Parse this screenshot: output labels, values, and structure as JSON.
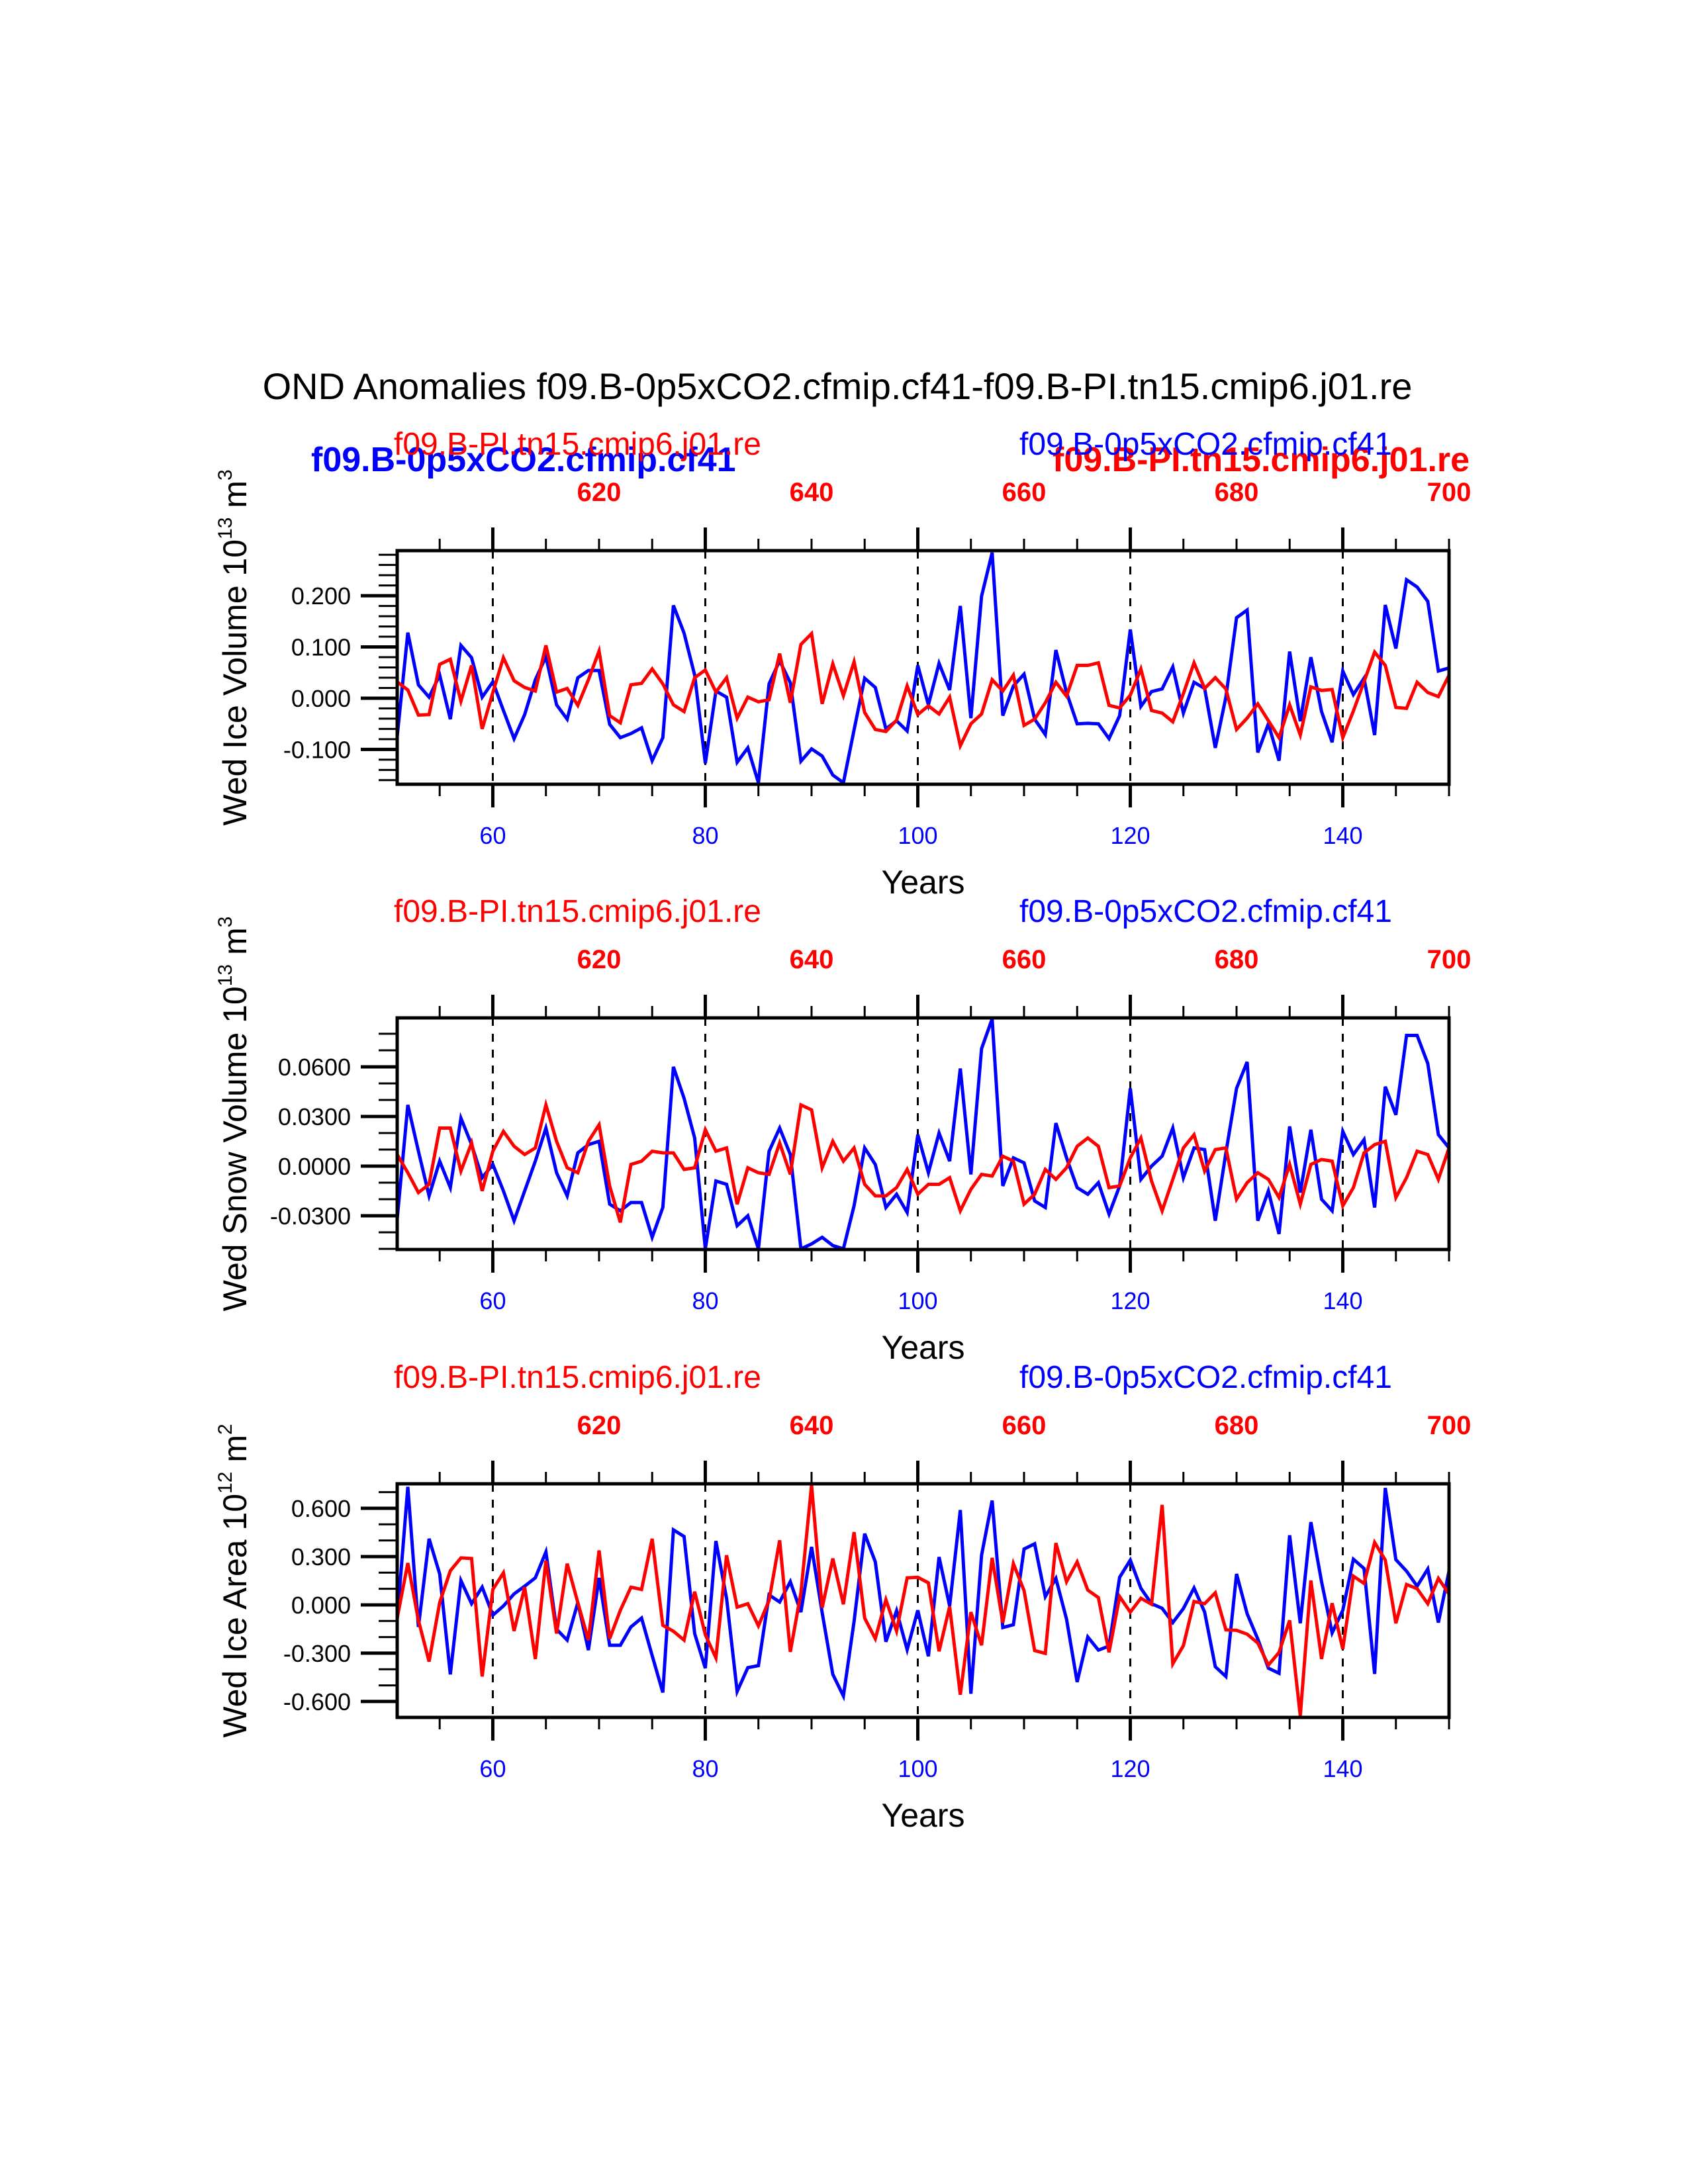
{
  "figure": {
    "title": "OND Anomalies f09.B-0p5xCO2.cfmip.cf41-f09.B-PI.tn15.cmip6.j01.re",
    "colors": {
      "exp": "#0000ff",
      "ctrl": "#ff0000",
      "axis": "#000000"
    },
    "overlay_labels": {
      "exp_bold": "f09.B-0p5xCO2.cfmip.cf41",
      "ctrl_bold": "f09.B-PI.tn15.cmip6.j01.re"
    }
  },
  "chart_data": [
    {
      "type": "line",
      "ylabel_main": "Wed Ice Volume 10",
      "ylabel_exp": "13",
      "ylabel_unit": " m",
      "ylabel_unit_exp": "3",
      "xlabel": "Years",
      "top_left_label": "f09.B-PI.tn15.cmip6.j01.re",
      "top_right_label": "f09.B-0p5xCO2.cfmip.cf41",
      "xlim": [
        51,
        150
      ],
      "ylim": [
        -0.168,
        0.288
      ],
      "x_ticks_bottom": [
        60,
        80,
        100,
        120,
        140
      ],
      "x_ticks_top": [
        620,
        640,
        660,
        680,
        700
      ],
      "top_axis_offset": 550,
      "y_ticks": [
        0.2,
        0.1,
        0.0,
        -0.1
      ],
      "y_tick_labels": [
        "0.200",
        "0.100",
        "0.000",
        "-0.100"
      ],
      "y_minor_step": 0.02,
      "vlines": [
        60,
        80,
        100,
        120,
        140
      ],
      "grid": false,
      "x_start": 51,
      "series": [
        {
          "name": "f09.B-0p5xCO2.cfmip.cf41",
          "color": "#0000ff",
          "values": [
            -0.075,
            0.128,
            0.026,
            0.002,
            0.045,
            -0.041,
            0.103,
            0.079,
            0.002,
            0.032,
            -0.024,
            -0.079,
            -0.032,
            0.036,
            0.081,
            -0.013,
            -0.041,
            0.04,
            0.054,
            0.054,
            -0.051,
            -0.077,
            -0.069,
            -0.058,
            -0.122,
            -0.077,
            0.181,
            0.127,
            0.045,
            -0.127,
            0.014,
            0.002,
            -0.125,
            -0.097,
            -0.165,
            0.028,
            0.073,
            0.03,
            -0.123,
            -0.099,
            -0.113,
            -0.15,
            -0.165,
            -0.062,
            0.039,
            0.021,
            -0.06,
            -0.044,
            -0.064,
            0.064,
            -0.013,
            0.068,
            0.016,
            0.18,
            -0.039,
            0.199,
            0.284,
            -0.034,
            0.024,
            0.047,
            -0.041,
            -0.071,
            0.094,
            0.011,
            -0.05,
            -0.049,
            -0.05,
            -0.079,
            -0.034,
            0.134,
            -0.016,
            0.013,
            0.018,
            0.061,
            -0.029,
            0.031,
            0.019,
            -0.097,
            0.002,
            0.157,
            0.172,
            -0.106,
            -0.05,
            -0.122,
            0.091,
            -0.045,
            0.08,
            -0.026,
            -0.086,
            0.053,
            0.007,
            0.039,
            -0.072,
            0.182,
            0.097,
            0.231,
            0.217,
            0.189,
            0.053,
            0.059
          ]
        },
        {
          "name": "f09.B-PI.tn15.cmip6.j01.re",
          "color": "#ff0000",
          "values": [
            0.032,
            0.016,
            -0.033,
            -0.032,
            0.066,
            0.076,
            -0.006,
            0.064,
            -0.06,
            0.011,
            0.079,
            0.034,
            0.021,
            0.014,
            0.103,
            0.012,
            0.019,
            -0.014,
            0.036,
            0.092,
            -0.034,
            -0.048,
            0.026,
            0.029,
            0.057,
            0.028,
            -0.013,
            -0.026,
            0.04,
            0.055,
            0.012,
            0.04,
            -0.039,
            0.002,
            -0.007,
            -0.003,
            0.087,
            -0.009,
            0.105,
            0.126,
            -0.011,
            0.067,
            0.005,
            0.071,
            -0.028,
            -0.061,
            -0.065,
            -0.043,
            0.024,
            -0.032,
            -0.015,
            -0.031,
            0.002,
            -0.093,
            -0.05,
            -0.031,
            0.036,
            0.014,
            0.045,
            -0.053,
            -0.041,
            -0.009,
            0.031,
            0.004,
            0.064,
            0.064,
            0.069,
            -0.014,
            -0.019,
            0.006,
            0.057,
            -0.024,
            -0.029,
            -0.046,
            0.009,
            0.069,
            0.019,
            0.04,
            0.018,
            -0.061,
            -0.039,
            -0.011,
            -0.044,
            -0.077,
            -0.013,
            -0.072,
            0.022,
            0.015,
            0.017,
            -0.077,
            -0.025,
            0.032,
            0.09,
            0.064,
            -0.018,
            -0.02,
            0.031,
            0.011,
            0.003,
            0.045
          ]
        }
      ]
    },
    {
      "type": "line",
      "ylabel_main": "Wed Snow Volume 10",
      "ylabel_exp": "13",
      "ylabel_unit": " m",
      "ylabel_unit_exp": "3",
      "xlabel": "Years",
      "top_left_label": "f09.B-PI.tn15.cmip6.j01.re",
      "top_right_label": "f09.B-0p5xCO2.cfmip.cf41",
      "xlim": [
        51,
        150
      ],
      "ylim": [
        -0.0504,
        0.0896
      ],
      "x_ticks_bottom": [
        60,
        80,
        100,
        120,
        140
      ],
      "x_ticks_top": [
        620,
        640,
        660,
        680,
        700
      ],
      "top_axis_offset": 550,
      "y_ticks": [
        0.06,
        0.03,
        0.0,
        -0.03
      ],
      "y_tick_labels": [
        "0.0600",
        "0.0300",
        "0.0000",
        "-0.0300"
      ],
      "y_minor_step": 0.01,
      "vlines": [
        60,
        80,
        100,
        120,
        140
      ],
      "grid": false,
      "x_start": 51,
      "series": [
        {
          "name": "f09.B-0p5xCO2.cfmip.cf41",
          "color": "#0000ff",
          "values": [
            -0.032,
            0.037,
            0.009,
            -0.018,
            0.003,
            -0.013,
            0.029,
            0.013,
            -0.007,
            0.001,
            -0.015,
            -0.033,
            -0.015,
            0.003,
            0.023,
            -0.004,
            -0.018,
            0.008,
            0.013,
            0.015,
            -0.023,
            -0.027,
            -0.022,
            -0.022,
            -0.043,
            -0.025,
            0.06,
            0.041,
            0.017,
            -0.05,
            -0.009,
            -0.011,
            -0.036,
            -0.03,
            -0.05,
            0.009,
            0.023,
            0.007,
            -0.05,
            -0.047,
            -0.043,
            -0.048,
            -0.05,
            -0.024,
            0.011,
            0.001,
            -0.025,
            -0.017,
            -0.028,
            0.019,
            -0.004,
            0.02,
            0.003,
            0.059,
            -0.005,
            0.071,
            0.089,
            -0.012,
            0.005,
            0.002,
            -0.021,
            -0.025,
            0.026,
            0.005,
            -0.013,
            -0.017,
            -0.01,
            -0.029,
            -0.012,
            0.047,
            -0.008,
            0.0,
            0.006,
            0.023,
            -0.007,
            0.011,
            0.01,
            -0.033,
            0.008,
            0.047,
            0.063,
            -0.033,
            -0.015,
            -0.041,
            0.024,
            -0.016,
            0.022,
            -0.02,
            -0.027,
            0.021,
            0.007,
            0.016,
            -0.025,
            0.048,
            0.031,
            0.079,
            0.079,
            0.062,
            0.019,
            0.011
          ]
        },
        {
          "name": "f09.B-PI.tn15.cmip6.j01.re",
          "color": "#ff0000",
          "values": [
            0.007,
            -0.004,
            -0.016,
            -0.011,
            0.023,
            0.023,
            -0.003,
            0.014,
            -0.015,
            0.009,
            0.021,
            0.012,
            0.007,
            0.011,
            0.037,
            0.015,
            -0.001,
            -0.004,
            0.015,
            0.025,
            -0.012,
            -0.034,
            0.001,
            0.003,
            0.009,
            0.008,
            0.008,
            -0.002,
            -0.001,
            0.022,
            0.009,
            0.011,
            -0.023,
            -0.001,
            -0.004,
            -0.005,
            0.014,
            -0.005,
            0.037,
            0.034,
            -0.001,
            0.015,
            0.003,
            0.011,
            -0.011,
            -0.018,
            -0.018,
            -0.013,
            -0.002,
            -0.017,
            -0.011,
            -0.011,
            -0.007,
            -0.027,
            -0.014,
            -0.005,
            -0.006,
            0.006,
            0.003,
            -0.023,
            -0.017,
            -0.002,
            -0.008,
            -0.001,
            0.012,
            0.017,
            0.012,
            -0.013,
            -0.012,
            0.005,
            0.017,
            -0.009,
            -0.027,
            -0.008,
            0.011,
            0.019,
            -0.003,
            0.01,
            0.011,
            -0.02,
            -0.01,
            -0.004,
            -0.008,
            -0.019,
            0.001,
            -0.023,
            0.001,
            0.004,
            0.003,
            -0.024,
            -0.013,
            0.008,
            0.013,
            0.015,
            -0.019,
            -0.007,
            0.009,
            0.007,
            -0.008,
            0.011
          ]
        }
      ]
    },
    {
      "type": "line",
      "ylabel_main": "Wed Ice Area 10",
      "ylabel_exp": "12",
      "ylabel_unit": " m",
      "ylabel_unit_exp": "2",
      "xlabel": "Years",
      "top_left_label": "f09.B-PI.tn15.cmip6.j01.re",
      "top_right_label": "f09.B-0p5xCO2.cfmip.cf41",
      "xlim": [
        51,
        150
      ],
      "ylim": [
        -0.699,
        0.752
      ],
      "x_ticks_bottom": [
        60,
        80,
        100,
        120,
        140
      ],
      "x_ticks_top": [
        620,
        640,
        660,
        680,
        700
      ],
      "top_axis_offset": 550,
      "y_ticks": [
        0.6,
        0.3,
        0.0,
        -0.3,
        -0.6
      ],
      "y_tick_labels": [
        "0.600",
        "0.300",
        "0.000",
        "-0.300",
        "-0.600"
      ],
      "y_minor_step": 0.1,
      "vlines": [
        60,
        80,
        100,
        120,
        140
      ],
      "grid": false,
      "x_start": 51,
      "series": [
        {
          "name": "f09.B-0p5xCO2.cfmip.cf41",
          "color": "#0000ff",
          "values": [
            -0.089,
            0.733,
            -0.137,
            0.411,
            0.192,
            -0.432,
            0.151,
            0.007,
            0.11,
            -0.064,
            -0.007,
            0.068,
            0.116,
            0.168,
            0.329,
            -0.151,
            -0.219,
            0.014,
            -0.281,
            0.168,
            -0.251,
            -0.251,
            -0.137,
            -0.082,
            -0.315,
            -0.544,
            0.466,
            0.425,
            -0.178,
            -0.393,
            0.397,
            0.041,
            -0.538,
            -0.39,
            -0.377,
            0.062,
            0.018,
            0.144,
            -0.045,
            0.36,
            -0.048,
            -0.432,
            -0.566,
            -0.103,
            0.442,
            0.267,
            -0.229,
            -0.037,
            -0.278,
            -0.034,
            -0.319,
            0.297,
            -0.007,
            0.589,
            -0.552,
            0.308,
            0.648,
            -0.141,
            -0.123,
            0.347,
            0.379,
            0.051,
            0.164,
            -0.089,
            -0.479,
            -0.199,
            -0.281,
            -0.256,
            0.171,
            0.278,
            0.103,
            0.007,
            -0.021,
            -0.11,
            -0.023,
            0.105,
            -0.045,
            -0.384,
            -0.445,
            0.192,
            -0.055,
            -0.212,
            -0.393,
            -0.425,
            0.432,
            -0.114,
            0.514,
            0.144,
            -0.174,
            -0.034,
            0.284,
            0.226,
            -0.429,
            0.726,
            0.281,
            0.21,
            0.116,
            0.223,
            -0.11,
            0.21
          ]
        },
        {
          "name": "f09.B-PI.tn15.cmip6.j01.re",
          "color": "#ff0000",
          "values": [
            -0.082,
            0.26,
            -0.096,
            -0.352,
            0.014,
            0.212,
            0.292,
            0.288,
            -0.445,
            0.096,
            0.199,
            -0.162,
            0.11,
            -0.336,
            0.274,
            -0.178,
            0.256,
            0.014,
            -0.219,
            0.338,
            -0.21,
            -0.034,
            0.11,
            0.096,
            0.411,
            -0.127,
            -0.164,
            -0.219,
            0.082,
            -0.185,
            -0.329,
            0.308,
            -0.014,
            0.007,
            -0.13,
            0.027,
            0.401,
            -0.292,
            0.075,
            0.744,
            -0.018,
            0.288,
            0.004,
            0.452,
            -0.082,
            -0.21,
            0.032,
            -0.162,
            0.168,
            0.171,
            0.137,
            -0.288,
            -0.01,
            -0.558,
            -0.045,
            -0.251,
            0.292,
            -0.11,
            0.256,
            0.089,
            -0.284,
            -0.301,
            0.384,
            0.144,
            0.267,
            0.092,
            0.045,
            -0.295,
            0.051,
            -0.045,
            0.041,
            0.004,
            0.621,
            -0.366,
            -0.253,
            0.021,
            0.007,
            0.075,
            -0.155,
            -0.158,
            -0.182,
            -0.237,
            -0.374,
            -0.295,
            -0.096,
            -0.689,
            0.151,
            -0.336,
            0.01,
            -0.274,
            0.178,
            0.133,
            0.388,
            0.278,
            -0.114,
            0.127,
            0.1,
            0.007,
            0.164,
            0.068
          ]
        }
      ]
    }
  ]
}
